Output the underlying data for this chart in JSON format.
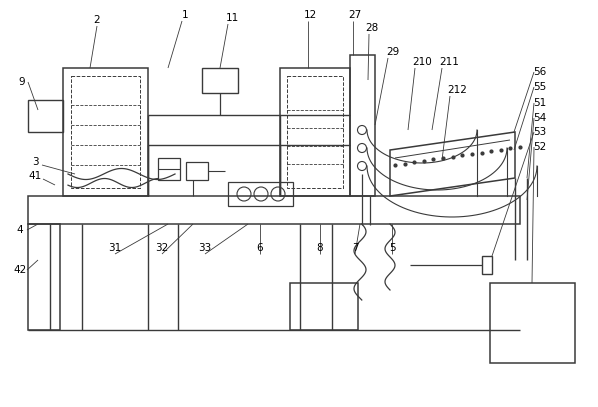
{
  "bg_color": "#ffffff",
  "line_color": "#3a3a3a",
  "label_color": "#000000",
  "figsize": [
    5.98,
    4.07
  ],
  "dpi": 100
}
